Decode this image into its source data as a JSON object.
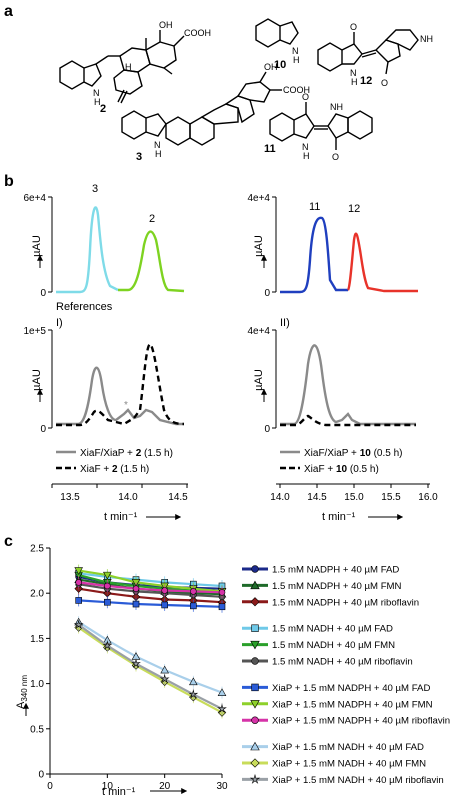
{
  "panel_labels": {
    "a": "a",
    "b": "b",
    "c": "c"
  },
  "panel_a": {
    "compounds": [
      {
        "id": "2",
        "cooh": "COOH",
        "oh": "OH"
      },
      {
        "id": "3",
        "cooh": "COOH",
        "oh": "OH"
      },
      {
        "id": "10"
      },
      {
        "id": "11",
        "nh": "NH",
        "o": "O",
        "n": "N",
        "h": "H"
      },
      {
        "id": "12",
        "nh": "NH",
        "o": "O",
        "n": "N",
        "h": "H"
      }
    ],
    "h_label": "H",
    "n_label": "N"
  },
  "panel_b": {
    "references_label": "References",
    "sub_i": "I)",
    "sub_ii": "II)",
    "ylabel": "µAU",
    "xlabel": "t min⁻¹",
    "ref_left": {
      "ymax": "6e+4",
      "ymin": "0",
      "peak3": "3",
      "peak2": "2"
    },
    "ref_right": {
      "ymax": "4e+4",
      "ymin": "0",
      "peak11": "11",
      "peak12": "12"
    },
    "low_left": {
      "ymax": "1e+5",
      "ymin": "0",
      "star": "*",
      "legend": [
        {
          "prefix": "XiaF/XiaP + ",
          "bold": "2",
          "suffix": " (1.5 h)"
        },
        {
          "prefix": "XiaF + ",
          "bold": "2",
          "suffix": " (1.5 h)"
        }
      ],
      "xticks": [
        "13.5",
        "14.0",
        "14.5"
      ]
    },
    "low_right": {
      "ymax": "4e+4",
      "ymin": "0",
      "legend": [
        {
          "prefix": "XiaF/XiaP + ",
          "bold": "10",
          "suffix": " (0.5 h)"
        },
        {
          "prefix": "XiaF + ",
          "bold": "10",
          "suffix": " (0.5 h)"
        }
      ],
      "xticks": [
        "14.0",
        "14.5",
        "15.0",
        "15.5",
        "16.0"
      ]
    },
    "colors": {
      "c3": "#7fdbe8",
      "c2": "#7ed321",
      "c11": "#1f3fbf",
      "c12": "#e8332a",
      "grey": "#8a8a8a",
      "black": "#000000"
    }
  },
  "chart_data": {
    "type": "line",
    "xlabel": "t min⁻¹",
    "ylabel": "A340 nm",
    "ylabel_main": "A",
    "ylabel_sub": "340 nm",
    "xlim": [
      0,
      30
    ],
    "ylim": [
      0,
      2.5
    ],
    "xticks": [
      "0",
      "10",
      "20",
      "30"
    ],
    "yticks": [
      "0",
      "0.5",
      "1.0",
      "1.5",
      "2.0",
      "2.5"
    ],
    "x": [
      5,
      10,
      15,
      20,
      25,
      30
    ],
    "series": [
      {
        "name": "1.5 mM NADPH + 40 µM FAD",
        "color": "#1b2a8a",
        "marker": "circle",
        "values": [
          2.18,
          2.12,
          2.09,
          2.07,
          2.06,
          2.05
        ]
      },
      {
        "name": "1.5 mM NADPH + 40 µM FMN",
        "color": "#1f6b2a",
        "marker": "triangle",
        "values": [
          2.15,
          2.1,
          2.05,
          2.02,
          2.0,
          1.99
        ]
      },
      {
        "name": "1.5 mM NADPH + 40 µM riboflavin",
        "color": "#8b1a1a",
        "marker": "diamond",
        "values": [
          2.05,
          2.0,
          1.96,
          1.93,
          1.92,
          1.9
        ]
      },
      {
        "name": "1.5 mM NADH + 40 µM FAD",
        "color": "#6fc9e8",
        "marker": "square",
        "values": [
          2.22,
          2.18,
          2.15,
          2.12,
          2.1,
          2.08
        ]
      },
      {
        "name": "1.5 mM NADH + 40 µM FMN",
        "color": "#2aa02a",
        "marker": "triangle-down",
        "values": [
          2.2,
          2.12,
          2.08,
          2.05,
          2.03,
          2.02
        ]
      },
      {
        "name": "1.5 mM NADH + 40 µM riboflavin",
        "color": "#555555",
        "marker": "circle",
        "values": [
          2.1,
          2.05,
          2.02,
          2.0,
          1.98,
          1.96
        ]
      },
      {
        "name": "XiaP + 1.5 mM NADPH + 40 µM FAD",
        "color": "#2a5bd7",
        "marker": "square",
        "values": [
          1.92,
          1.9,
          1.88,
          1.87,
          1.86,
          1.85
        ]
      },
      {
        "name": "XiaP + 1.5 mM NADPH + 40 µM FMN",
        "color": "#8ed12a",
        "marker": "triangle-down",
        "values": [
          2.25,
          2.2,
          2.12,
          2.08,
          2.05,
          2.02
        ]
      },
      {
        "name": "XiaP + 1.5 mM NADPH + 40 µM riboflavin",
        "color": "#d633a8",
        "marker": "circle",
        "values": [
          2.12,
          2.08,
          2.05,
          2.03,
          2.02,
          2.01
        ]
      },
      {
        "name": "XiaP + 1.5 mM NADH + 40 µM FAD",
        "color": "#a9cfea",
        "marker": "triangle",
        "values": [
          1.68,
          1.48,
          1.3,
          1.15,
          1.02,
          0.9
        ]
      },
      {
        "name": "XiaP + 1.5 mM NADH + 40 µM FMN",
        "color": "#c8dc5a",
        "marker": "diamond",
        "values": [
          1.62,
          1.4,
          1.2,
          1.02,
          0.85,
          0.68
        ]
      },
      {
        "name": "XiaP + 1.5 mM NADH + 40 µM riboflavin",
        "color": "#9aa0a6",
        "marker": "star",
        "values": [
          1.65,
          1.42,
          1.22,
          1.05,
          0.88,
          0.72
        ]
      }
    ]
  }
}
